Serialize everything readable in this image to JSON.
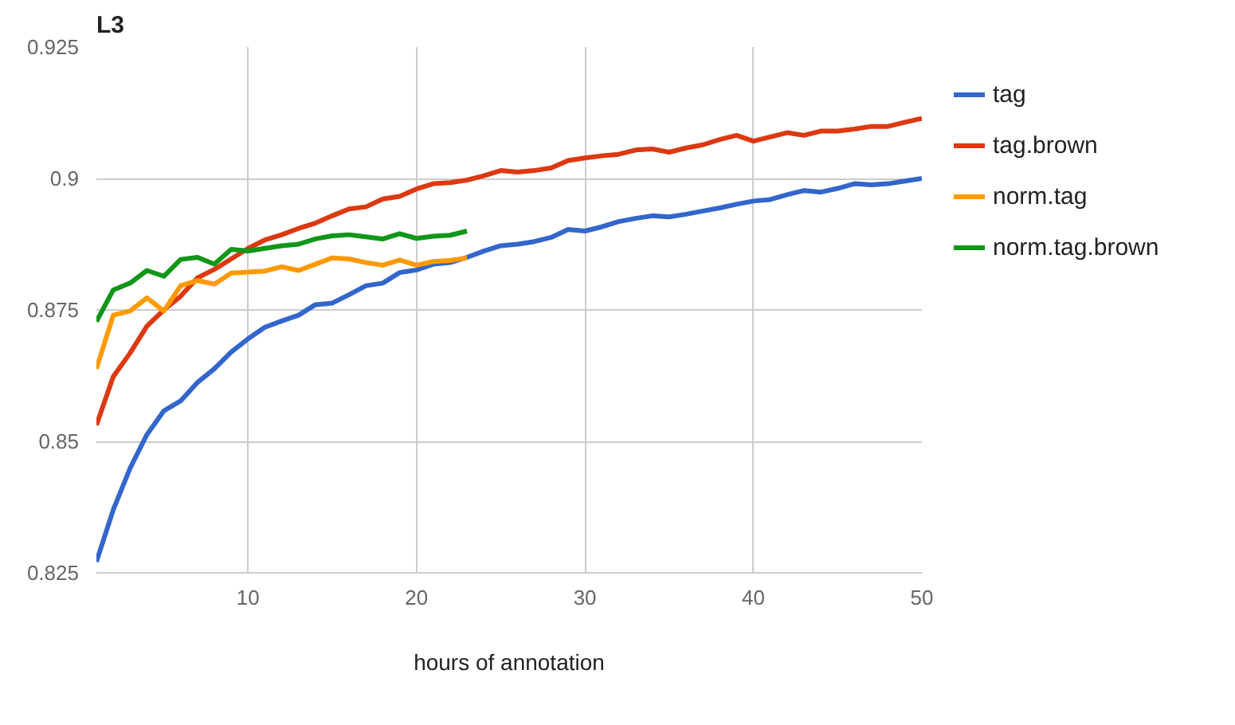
{
  "chart_data": {
    "type": "line",
    "title": "L3",
    "xlabel": "hours of annotation",
    "x": [
      1,
      2,
      3,
      4,
      5,
      6,
      7,
      8,
      9,
      10,
      11,
      12,
      13,
      14,
      15,
      16,
      17,
      18,
      19,
      20,
      21,
      22,
      23,
      24,
      25,
      26,
      27,
      28,
      29,
      30,
      31,
      32,
      33,
      34,
      35,
      36,
      37,
      38,
      39,
      40,
      41,
      42,
      43,
      44,
      45,
      46,
      47,
      48,
      49,
      50
    ],
    "xlim": [
      1,
      50
    ],
    "xticks": [
      10,
      20,
      30,
      40,
      50
    ],
    "ylim": [
      0.825,
      0.925
    ],
    "yticks": [
      0.825,
      0.85,
      0.875,
      0.9,
      0.925
    ],
    "grid": true,
    "legend": "right",
    "line_style": "solid",
    "series": [
      {
        "name": "tag",
        "color": "#3366cc",
        "values": [
          0.8271,
          0.837,
          0.8449,
          0.8513,
          0.8558,
          0.8577,
          0.8612,
          0.8638,
          0.867,
          0.8695,
          0.8717,
          0.8729,
          0.874,
          0.876,
          0.8763,
          0.8779,
          0.8796,
          0.8801,
          0.8821,
          0.8826,
          0.8837,
          0.884,
          0.885,
          0.8862,
          0.8872,
          0.8875,
          0.888,
          0.8888,
          0.8903,
          0.89,
          0.8908,
          0.8918,
          0.8924,
          0.8929,
          0.8927,
          0.8932,
          0.8938,
          0.8944,
          0.8951,
          0.8957,
          0.896,
          0.8969,
          0.8977,
          0.8974,
          0.8981,
          0.899,
          0.8988,
          0.899,
          0.8995,
          0.9
        ]
      },
      {
        "name": "tag.brown",
        "color": "#dc3912",
        "values": [
          0.8531,
          0.8623,
          0.8668,
          0.8719,
          0.875,
          0.8776,
          0.8811,
          0.8827,
          0.8847,
          0.8867,
          0.8883,
          0.8893,
          0.8905,
          0.8915,
          0.8929,
          0.8942,
          0.8946,
          0.8961,
          0.8966,
          0.898,
          0.899,
          0.8992,
          0.8997,
          0.9005,
          0.9015,
          0.9012,
          0.9015,
          0.902,
          0.9034,
          0.9039,
          0.9043,
          0.9046,
          0.9054,
          0.9056,
          0.905,
          0.9058,
          0.9064,
          0.9074,
          0.9082,
          0.9071,
          0.9079,
          0.9087,
          0.9082,
          0.909,
          0.909,
          0.9094,
          0.9099,
          0.9099,
          0.9107,
          0.9114
        ]
      },
      {
        "name": "norm.tag",
        "color": "#ff9900",
        "values": [
          0.8638,
          0.874,
          0.8748,
          0.8773,
          0.8748,
          0.8796,
          0.8806,
          0.8799,
          0.882,
          0.8822,
          0.8824,
          0.8832,
          0.8825,
          0.8837,
          0.8849,
          0.8847,
          0.884,
          0.8835,
          0.8845,
          0.8835,
          0.8842,
          0.8844,
          0.8849,
          null,
          null,
          null,
          null,
          null,
          null,
          null,
          null,
          null,
          null,
          null,
          null,
          null,
          null,
          null,
          null,
          null,
          null,
          null,
          null,
          null,
          null,
          null,
          null,
          null,
          null,
          null
        ]
      },
      {
        "name": "norm.tag.brown",
        "color": "#109618",
        "values": [
          0.8728,
          0.8788,
          0.8801,
          0.8825,
          0.8814,
          0.8846,
          0.885,
          0.8837,
          0.8865,
          0.8862,
          0.8867,
          0.8872,
          0.8875,
          0.8885,
          0.8891,
          0.8893,
          0.8889,
          0.8885,
          0.8895,
          0.8886,
          0.889,
          0.8892,
          0.89,
          null,
          null,
          null,
          null,
          null,
          null,
          null,
          null,
          null,
          null,
          null,
          null,
          null,
          null,
          null,
          null,
          null,
          null,
          null,
          null,
          null,
          null,
          null,
          null,
          null,
          null,
          null
        ]
      }
    ]
  }
}
